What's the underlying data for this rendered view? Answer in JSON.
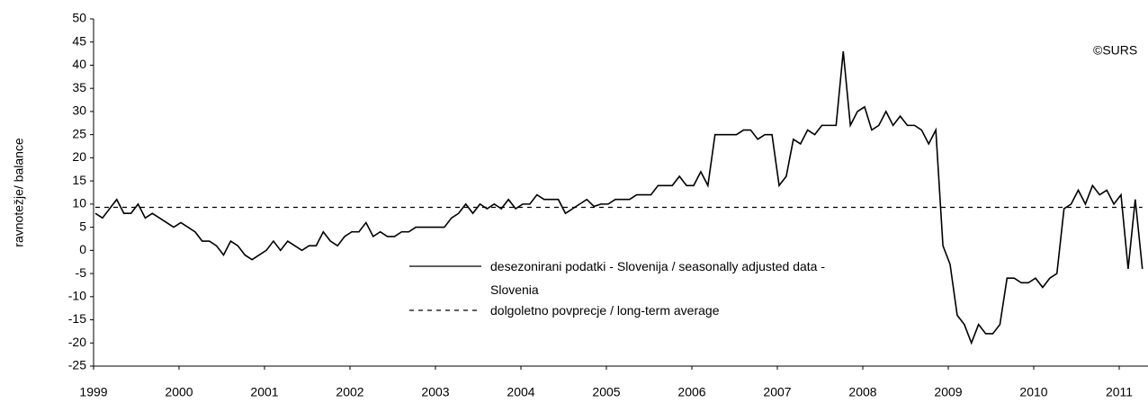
{
  "chart_data": {
    "type": "line",
    "y_label": "ravnotežje/ balance",
    "annotation": "©SURS",
    "categories": [
      "1999",
      null,
      null,
      null,
      null,
      null,
      null,
      null,
      null,
      null,
      null,
      null,
      "2000",
      null,
      null,
      null,
      null,
      null,
      null,
      null,
      null,
      null,
      null,
      null,
      "2001",
      null,
      null,
      null,
      null,
      null,
      null,
      null,
      null,
      null,
      null,
      null,
      "2002",
      null,
      null,
      null,
      null,
      null,
      null,
      null,
      null,
      null,
      null,
      null,
      "2003",
      null,
      null,
      null,
      null,
      null,
      null,
      null,
      null,
      null,
      null,
      null,
      "2004",
      null,
      null,
      null,
      null,
      null,
      null,
      null,
      null,
      null,
      null,
      null,
      "2005",
      null,
      null,
      null,
      null,
      null,
      null,
      null,
      null,
      null,
      null,
      null,
      "2006",
      null,
      null,
      null,
      null,
      null,
      null,
      null,
      null,
      null,
      null,
      null,
      "2007",
      null,
      null,
      null,
      null,
      null,
      null,
      null,
      null,
      null,
      null,
      null,
      "2008",
      null,
      null,
      null,
      null,
      null,
      null,
      null,
      null,
      null,
      null,
      null,
      "2009",
      null,
      null,
      null,
      null,
      null,
      null,
      null,
      null,
      null,
      null,
      null,
      "2010",
      null,
      null,
      null,
      null,
      null,
      null,
      null,
      null,
      null,
      null,
      null,
      "2011",
      null,
      null,
      null
    ],
    "series": [
      {
        "name": "desezonirani podatki - Slovenija / seasonally adjusted data - Slovenia",
        "color": "#000000",
        "values": [
          8,
          7,
          9,
          11,
          8,
          8,
          10,
          7,
          8,
          7,
          6,
          5,
          6,
          5,
          4,
          2,
          2,
          1,
          -1,
          2,
          1,
          -1,
          -2,
          -1,
          0,
          2,
          0,
          2,
          1,
          0,
          1,
          1,
          4,
          2,
          1,
          3,
          4,
          4,
          6,
          3,
          4,
          3,
          3,
          4,
          4,
          5,
          5,
          5,
          5,
          5,
          7,
          8,
          10,
          8,
          10,
          9,
          10,
          9,
          11,
          9,
          10,
          10,
          12,
          11,
          11,
          11,
          8,
          9,
          10,
          11,
          9.5,
          10,
          10,
          11,
          11,
          11,
          12,
          12,
          12,
          14,
          14,
          14,
          16,
          14,
          14,
          17,
          14,
          25,
          25,
          25,
          25,
          26,
          26,
          24,
          25,
          25,
          14,
          16,
          24,
          23,
          26,
          25,
          27,
          27,
          27,
          43,
          27,
          30,
          31,
          26,
          27,
          30,
          27,
          29,
          27,
          27,
          26,
          23,
          26,
          1,
          -3,
          -14,
          -16,
          -20,
          -16,
          -18,
          -18,
          -16,
          -6,
          -6,
          -7,
          -7,
          -6,
          -8,
          -6,
          -5,
          9,
          10,
          13,
          10,
          14,
          12,
          13,
          10,
          12,
          -4,
          11,
          -4
        ]
      }
    ],
    "reference_line": {
      "name": "dolgoletno povprecje / long-term average",
      "value": 9.3,
      "color": "#000000",
      "dashed": true
    },
    "ylim": [
      -25,
      50
    ],
    "yticks": [
      -25,
      -20,
      -15,
      -10,
      -5,
      0,
      5,
      10,
      15,
      20,
      25,
      30,
      35,
      40,
      45,
      50
    ],
    "grid": false
  }
}
